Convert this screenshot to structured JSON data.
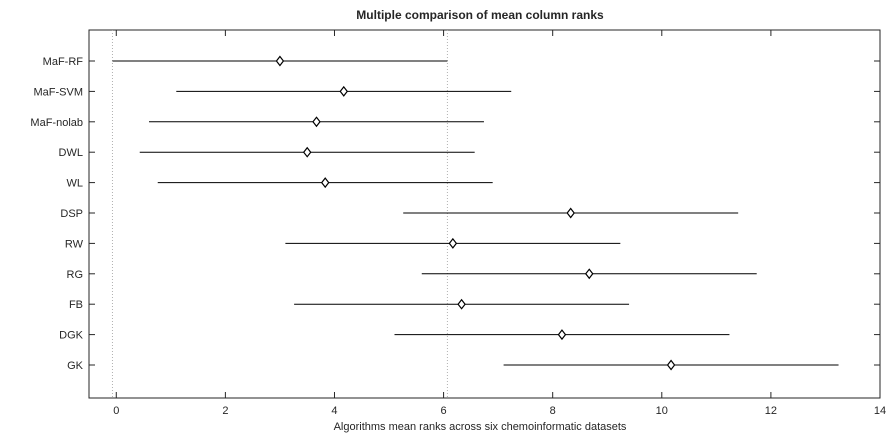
{
  "chart_data": {
    "type": "interval",
    "title": "Multiple comparison of mean column ranks",
    "xlabel": "Algorithms mean ranks across six chemoinformatic datasets",
    "ylabel": "",
    "xlim": [
      -0.5,
      14
    ],
    "xticks": [
      0,
      2,
      4,
      6,
      8,
      10,
      12,
      14
    ],
    "grid": false,
    "reference_lines_x": [
      -0.07,
      6.07
    ],
    "categories": [
      "MaF-RF",
      "MaF-SVM",
      "MaF-nolab",
      "DWL",
      "WL",
      "DSP",
      "RW",
      "RG",
      "FB",
      "DGK",
      "GK"
    ],
    "series": [
      {
        "mean": [
          3.0,
          4.17,
          3.67,
          3.5,
          3.83,
          8.33,
          6.17,
          8.67,
          6.33,
          8.17,
          10.17
        ],
        "lower": [
          -0.07,
          1.1,
          0.6,
          0.43,
          0.76,
          5.26,
          3.1,
          5.6,
          3.26,
          5.1,
          7.1
        ],
        "upper": [
          6.07,
          7.24,
          6.74,
          6.57,
          6.9,
          11.4,
          9.24,
          11.74,
          9.4,
          11.24,
          13.24
        ]
      }
    ],
    "colors": {
      "line": "#000000",
      "axis": "#262626",
      "reference": "#b0b0b0"
    }
  }
}
